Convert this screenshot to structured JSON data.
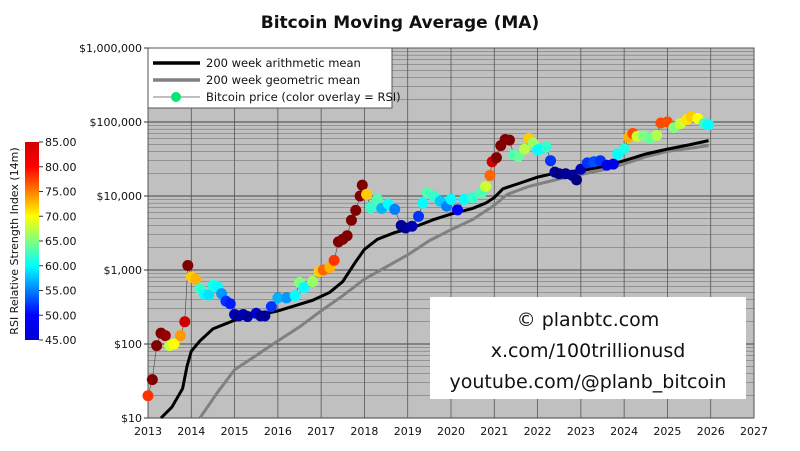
{
  "chart_data": {
    "type": "scatter",
    "title": "Bitcoin Moving Average (MA)",
    "xlabel": "",
    "ylabel": "",
    "xlim": [
      2013,
      2027
    ],
    "ylim": [
      10,
      1000000
    ],
    "yscale": "log",
    "grid": true,
    "x_ticks": [
      "2013",
      "2014",
      "2015",
      "2016",
      "2017",
      "2018",
      "2019",
      "2020",
      "2021",
      "2022",
      "2023",
      "2024",
      "2025",
      "2026",
      "2027"
    ],
    "y_ticks": [
      {
        "value": 10,
        "label": "$10"
      },
      {
        "value": 100,
        "label": "$100"
      },
      {
        "value": 1000,
        "label": "$1,000"
      },
      {
        "value": 10000,
        "label": "$10,000"
      },
      {
        "value": 100000,
        "label": "$100,000"
      },
      {
        "value": 1000000,
        "label": "$1,000,000"
      }
    ],
    "legend_position": "top-left",
    "legend": [
      {
        "label": "200 week arithmetic mean",
        "color": "#000000"
      },
      {
        "label": "200 week geometric mean",
        "color": "#808080"
      },
      {
        "label": "Bitcoin price (color overlay = RSI)",
        "color": "#00e676"
      }
    ],
    "colorbar": {
      "label": "RSI Relative Strength Index (14m)",
      "range": [
        45,
        85
      ],
      "ticks": [
        "85.00",
        "80.00",
        "75.00",
        "70.00",
        "65.00",
        "60.00",
        "55.00",
        "50.00",
        "45.00"
      ]
    },
    "series": [
      {
        "name": "200 week arithmetic mean",
        "points": [
          [
            2013.3,
            10
          ],
          [
            2013.55,
            14
          ],
          [
            2013.8,
            25
          ],
          [
            2013.9,
            50
          ],
          [
            2014.0,
            80
          ],
          [
            2014.2,
            110
          ],
          [
            2014.5,
            160
          ],
          [
            2015.0,
            210
          ],
          [
            2016.0,
            280
          ],
          [
            2016.8,
            390
          ],
          [
            2017.2,
            500
          ],
          [
            2017.5,
            700
          ],
          [
            2017.8,
            1300
          ],
          [
            2018.0,
            1900
          ],
          [
            2018.3,
            2600
          ],
          [
            2018.7,
            3200
          ],
          [
            2019.1,
            3700
          ],
          [
            2019.6,
            4800
          ],
          [
            2020.0,
            5700
          ],
          [
            2020.5,
            6800
          ],
          [
            2020.8,
            8000
          ],
          [
            2021.0,
            9500
          ],
          [
            2021.2,
            12500
          ],
          [
            2021.6,
            15000
          ],
          [
            2022.0,
            18000
          ],
          [
            2022.5,
            21000
          ],
          [
            2023.0,
            22000
          ],
          [
            2023.5,
            25000
          ],
          [
            2024.0,
            30000
          ],
          [
            2024.5,
            37000
          ],
          [
            2025.0,
            43000
          ],
          [
            2025.5,
            49000
          ],
          [
            2025.95,
            56000
          ]
        ]
      },
      {
        "name": "200 week geometric mean",
        "points": [
          [
            2014.2,
            10
          ],
          [
            2014.6,
            22
          ],
          [
            2015.0,
            45
          ],
          [
            2015.5,
            70
          ],
          [
            2016.0,
            110
          ],
          [
            2016.5,
            170
          ],
          [
            2017.0,
            280
          ],
          [
            2017.5,
            450
          ],
          [
            2018.0,
            750
          ],
          [
            2018.5,
            1100
          ],
          [
            2019.0,
            1600
          ],
          [
            2019.5,
            2500
          ],
          [
            2020.0,
            3500
          ],
          [
            2020.5,
            4800
          ],
          [
            2021.0,
            7500
          ],
          [
            2021.3,
            10500
          ],
          [
            2021.8,
            13500
          ],
          [
            2022.5,
            17000
          ],
          [
            2023.0,
            19500
          ],
          [
            2023.5,
            22500
          ],
          [
            2024.0,
            27000
          ],
          [
            2024.5,
            34000
          ],
          [
            2025.0,
            40000
          ],
          [
            2025.5,
            44000
          ],
          [
            2025.95,
            48000
          ]
        ]
      },
      {
        "name": "Bitcoin price",
        "fields": [
          "year",
          "price",
          "rsi"
        ],
        "points": [
          [
            2013.0,
            20,
            78
          ],
          [
            2013.1,
            33,
            85
          ],
          [
            2013.2,
            95,
            85
          ],
          [
            2013.3,
            140,
            85
          ],
          [
            2013.4,
            130,
            84
          ],
          [
            2013.5,
            95,
            68
          ],
          [
            2013.6,
            100,
            70
          ],
          [
            2013.75,
            130,
            74
          ],
          [
            2013.85,
            200,
            82
          ],
          [
            2013.92,
            1150,
            85
          ],
          [
            2014.0,
            800,
            72
          ],
          [
            2014.1,
            750,
            73
          ],
          [
            2014.2,
            560,
            62
          ],
          [
            2014.3,
            470,
            60
          ],
          [
            2014.4,
            460,
            59
          ],
          [
            2014.5,
            620,
            61
          ],
          [
            2014.6,
            600,
            60
          ],
          [
            2014.7,
            480,
            56
          ],
          [
            2014.8,
            380,
            52
          ],
          [
            2014.9,
            350,
            51
          ],
          [
            2015.0,
            250,
            47
          ],
          [
            2015.1,
            240,
            46
          ],
          [
            2015.2,
            250,
            47
          ],
          [
            2015.3,
            235,
            46
          ],
          [
            2015.5,
            260,
            48
          ],
          [
            2015.6,
            240,
            46
          ],
          [
            2015.7,
            240,
            46
          ],
          [
            2015.85,
            320,
            52
          ],
          [
            2016.0,
            420,
            57
          ],
          [
            2016.2,
            420,
            56
          ],
          [
            2016.4,
            450,
            60
          ],
          [
            2016.5,
            680,
            65
          ],
          [
            2016.6,
            580,
            60
          ],
          [
            2016.8,
            700,
            66
          ],
          [
            2016.95,
            950,
            72
          ],
          [
            2017.05,
            1000,
            76
          ],
          [
            2017.2,
            1080,
            73
          ],
          [
            2017.3,
            1350,
            78
          ],
          [
            2017.4,
            2400,
            85
          ],
          [
            2017.5,
            2600,
            85
          ],
          [
            2017.6,
            2900,
            85
          ],
          [
            2017.7,
            4700,
            85
          ],
          [
            2017.8,
            6400,
            85
          ],
          [
            2017.9,
            10000,
            85
          ],
          [
            2017.95,
            14000,
            85
          ],
          [
            2018.05,
            10500,
            72
          ],
          [
            2018.15,
            7000,
            62
          ],
          [
            2018.3,
            9000,
            63
          ],
          [
            2018.4,
            6800,
            57
          ],
          [
            2018.55,
            7800,
            60
          ],
          [
            2018.7,
            6600,
            55
          ],
          [
            2018.85,
            4000,
            46
          ],
          [
            2018.95,
            3700,
            46
          ],
          [
            2019.1,
            3900,
            47
          ],
          [
            2019.25,
            5300,
            52
          ],
          [
            2019.35,
            8000,
            60
          ],
          [
            2019.45,
            11000,
            63
          ],
          [
            2019.6,
            10000,
            62
          ],
          [
            2019.75,
            8500,
            58
          ],
          [
            2019.9,
            7300,
            55
          ],
          [
            2020.0,
            9000,
            60
          ],
          [
            2020.15,
            6500,
            50
          ],
          [
            2020.3,
            9000,
            60
          ],
          [
            2020.5,
            9500,
            62
          ],
          [
            2020.7,
            11000,
            63
          ],
          [
            2020.8,
            13500,
            68
          ],
          [
            2020.9,
            19000,
            76
          ],
          [
            2020.95,
            29000,
            82
          ],
          [
            2021.05,
            33000,
            85
          ],
          [
            2021.15,
            48000,
            85
          ],
          [
            2021.25,
            58000,
            85
          ],
          [
            2021.35,
            57000,
            85
          ],
          [
            2021.45,
            36000,
            63
          ],
          [
            2021.55,
            34000,
            64
          ],
          [
            2021.7,
            43000,
            67
          ],
          [
            2021.8,
            60000,
            72
          ],
          [
            2021.9,
            52000,
            66
          ],
          [
            2022.0,
            42000,
            60
          ],
          [
            2022.1,
            44000,
            60
          ],
          [
            2022.2,
            46000,
            62
          ],
          [
            2022.3,
            30000,
            52
          ],
          [
            2022.4,
            21000,
            46
          ],
          [
            2022.5,
            20000,
            45
          ],
          [
            2022.65,
            20000,
            46
          ],
          [
            2022.8,
            19000,
            46
          ],
          [
            2022.9,
            16500,
            45
          ],
          [
            2023.0,
            23000,
            47
          ],
          [
            2023.15,
            28000,
            52
          ],
          [
            2023.3,
            29000,
            53
          ],
          [
            2023.45,
            30000,
            52
          ],
          [
            2023.6,
            26000,
            49
          ],
          [
            2023.75,
            27000,
            49
          ],
          [
            2023.85,
            37000,
            60
          ],
          [
            2024.0,
            43000,
            61
          ],
          [
            2024.1,
            62000,
            73
          ],
          [
            2024.2,
            70000,
            77
          ],
          [
            2024.3,
            64000,
            68
          ],
          [
            2024.45,
            65000,
            65
          ],
          [
            2024.6,
            60000,
            64
          ],
          [
            2024.75,
            66000,
            67
          ],
          [
            2024.85,
            97000,
            77
          ],
          [
            2025.0,
            100000,
            77
          ],
          [
            2025.15,
            84000,
            65
          ],
          [
            2025.3,
            95000,
            68
          ],
          [
            2025.45,
            108000,
            71
          ],
          [
            2025.55,
            118000,
            72
          ],
          [
            2025.7,
            112000,
            70
          ],
          [
            2025.85,
            95000,
            62
          ],
          [
            2025.95,
            92000,
            60
          ]
        ]
      }
    ],
    "annotations": [
      "© planbtc.com",
      "x.com/100trillionusd",
      "youtube.com/@planb_bitcoin"
    ]
  }
}
